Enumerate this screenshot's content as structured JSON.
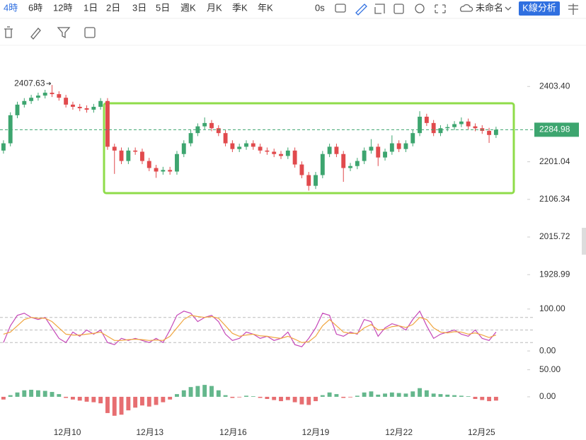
{
  "toolbar": {
    "intervals": [
      "4時",
      "6時",
      "12時",
      "1日",
      "2日",
      "3日",
      "5日",
      "週K",
      "月K",
      "季K",
      "年K"
    ],
    "selected": 0,
    "timer": "0s",
    "layout_name": "未命名",
    "analysis_button": "K線分析"
  },
  "chart_data": [
    {
      "type": "candlestick",
      "ylog": true,
      "up_color": "#3da56f",
      "down_color": "#e14a4d",
      "xlim": [
        -0.5,
        75.5
      ],
      "ylim": [
        1879,
        2522
      ],
      "xticks": [
        {
          "value": 9.2,
          "label": "12月10"
        },
        {
          "value": 21.1,
          "label": "12月13"
        },
        {
          "value": 33.1,
          "label": "12月16"
        },
        {
          "value": 45.0,
          "label": "12月19"
        },
        {
          "value": 57.0,
          "label": "12月22"
        },
        {
          "value": 68.9,
          "label": "12月25"
        }
      ],
      "yticks": [
        {
          "value": 2403.4,
          "label": "2403.40"
        },
        {
          "value": 2201.04,
          "label": "2201.04"
        },
        {
          "value": 2106.34,
          "label": "2106.34"
        },
        {
          "value": 2015.72,
          "label": "2015.72"
        },
        {
          "value": 1928.99,
          "label": "1928.99"
        }
      ],
      "open": [
        2230,
        2249,
        2324,
        2353,
        2363,
        2372,
        2378,
        2386,
        2382,
        2372,
        2353,
        2347,
        2343,
        2339,
        2347,
        2363,
        2240,
        2230,
        2203,
        2230,
        2227,
        2203,
        2185,
        2176,
        2180,
        2176,
        2221,
        2249,
        2276,
        2294,
        2303,
        2289,
        2276,
        2249,
        2234,
        2240,
        2249,
        2240,
        2230,
        2227,
        2221,
        2216,
        2230,
        2194,
        2167,
        2140,
        2167,
        2221,
        2240,
        2221,
        2185,
        2190,
        2203,
        2230,
        2240,
        2212,
        2227,
        2249,
        2234,
        2249,
        2276,
        2320,
        2303,
        2276,
        2289,
        2292,
        2300,
        2307,
        2294,
        2289,
        2282,
        2271
      ],
      "high": [
        2257,
        2332,
        2361,
        2371,
        2380,
        2386,
        2394,
        2407.63,
        2390,
        2380,
        2361,
        2355,
        2351,
        2355,
        2371,
        2371,
        2248,
        2238,
        2238,
        2238,
        2235,
        2211,
        2193,
        2188,
        2188,
        2229,
        2257,
        2284,
        2302,
        2318,
        2311,
        2297,
        2284,
        2257,
        2248,
        2257,
        2257,
        2248,
        2238,
        2235,
        2229,
        2238,
        2238,
        2202,
        2175,
        2175,
        2229,
        2248,
        2248,
        2229,
        2198,
        2211,
        2238,
        2260,
        2248,
        2235,
        2270,
        2257,
        2257,
        2284,
        2335,
        2328,
        2311,
        2297,
        2300,
        2308,
        2318,
        2315,
        2302,
        2297,
        2290,
        2293
      ],
      "low": [
        2222,
        2241,
        2316,
        2345,
        2355,
        2364,
        2370,
        2374,
        2364,
        2345,
        2339,
        2335,
        2331,
        2331,
        2339,
        2232,
        2170,
        2195,
        2195,
        2219,
        2195,
        2177,
        2160,
        2168,
        2168,
        2168,
        2213,
        2241,
        2268,
        2286,
        2281,
        2268,
        2241,
        2226,
        2226,
        2232,
        2232,
        2222,
        2219,
        2213,
        2208,
        2208,
        2186,
        2159,
        2128,
        2132,
        2159,
        2213,
        2213,
        2150,
        2177,
        2182,
        2195,
        2222,
        2190,
        2204,
        2219,
        2226,
        2226,
        2241,
        2268,
        2295,
        2268,
        2268,
        2281,
        2284,
        2292,
        2286,
        2281,
        2274,
        2250,
        2263
      ],
      "close": [
        2249,
        2324,
        2353,
        2363,
        2372,
        2378,
        2386,
        2382,
        2372,
        2353,
        2347,
        2343,
        2339,
        2347,
        2363,
        2240,
        2230,
        2203,
        2230,
        2227,
        2203,
        2185,
        2176,
        2180,
        2176,
        2221,
        2249,
        2276,
        2294,
        2303,
        2289,
        2276,
        2249,
        2234,
        2240,
        2249,
        2240,
        2230,
        2227,
        2221,
        2216,
        2230,
        2194,
        2167,
        2140,
        2167,
        2221,
        2240,
        2221,
        2185,
        2190,
        2203,
        2230,
        2240,
        2212,
        2227,
        2249,
        2234,
        2249,
        2276,
        2320,
        2303,
        2276,
        2289,
        2292,
        2300,
        2307,
        2294,
        2289,
        2282,
        2271,
        2284.98
      ]
    },
    {
      "type": "line",
      "xlim": [
        -0.5,
        75.5
      ],
      "ylim": [
        -15,
        120
      ],
      "yticks": [
        {
          "value": 100,
          "label": "100.00"
        },
        {
          "value": 0,
          "label": "0.00"
        }
      ],
      "levels": [
        80,
        50,
        20
      ],
      "series": [
        {
          "color": "#c548b8",
          "values": [
            20,
            60,
            85,
            90,
            80,
            75,
            80,
            55,
            30,
            20,
            45,
            35,
            50,
            40,
            50,
            20,
            15,
            30,
            25,
            30,
            25,
            20,
            30,
            20,
            50,
            85,
            95,
            90,
            70,
            80,
            85,
            70,
            40,
            25,
            30,
            45,
            40,
            30,
            35,
            25,
            30,
            45,
            15,
            10,
            30,
            55,
            90,
            85,
            40,
            35,
            45,
            40,
            75,
            70,
            35,
            55,
            65,
            60,
            50,
            75,
            95,
            60,
            30,
            40,
            45,
            50,
            40,
            35,
            50,
            30,
            25,
            45
          ]
        },
        {
          "color": "#f0a640",
          "values": [
            40,
            45,
            60,
            75,
            80,
            78,
            78,
            70,
            55,
            40,
            38,
            38,
            40,
            42,
            45,
            35,
            25,
            25,
            27,
            28,
            27,
            25,
            26,
            25,
            35,
            55,
            75,
            85,
            82,
            80,
            82,
            78,
            60,
            42,
            35,
            38,
            40,
            36,
            35,
            32,
            30,
            35,
            28,
            20,
            22,
            35,
            60,
            75,
            60,
            45,
            42,
            42,
            55,
            63,
            50,
            52,
            58,
            60,
            56,
            63,
            80,
            75,
            55,
            45,
            43,
            46,
            45,
            40,
            43,
            38,
            32,
            38
          ]
        }
      ]
    },
    {
      "type": "histogram_bar",
      "xlim": [
        -0.5,
        75.5
      ],
      "ylim": [
        -51,
        60
      ],
      "yticks": [
        {
          "value": 50,
          "label": "50.00"
        },
        {
          "value": 0,
          "label": "0.00"
        }
      ],
      "up_color": "#3da56f",
      "down_color": "#e14a4d",
      "values": [
        -5,
        3,
        8,
        12,
        13,
        12,
        11,
        9,
        5,
        -2,
        -5,
        -7,
        -9,
        -10,
        -12,
        -30,
        -35,
        -33,
        -25,
        -20,
        -16,
        -18,
        -15,
        -10,
        -5,
        5,
        12,
        18,
        20,
        22,
        20,
        12,
        3,
        -2,
        -1,
        2,
        1,
        -2,
        -4,
        -6,
        -8,
        -6,
        -10,
        -14,
        -15,
        -8,
        3,
        8,
        5,
        -2,
        -1,
        2,
        8,
        10,
        4,
        6,
        8,
        7,
        6,
        10,
        16,
        12,
        6,
        5,
        4,
        3,
        2,
        1,
        -4,
        -6,
        -8,
        -7
      ]
    }
  ]
}
